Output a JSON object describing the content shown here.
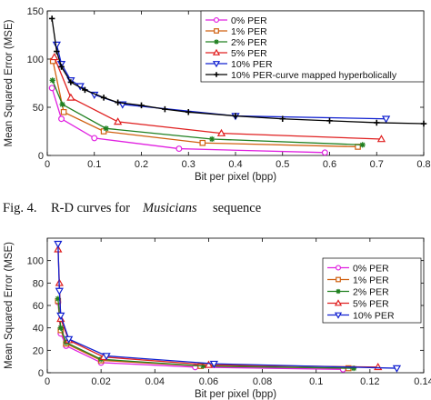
{
  "caption": {
    "prefix": "Fig. 4.",
    "text": "R-D curves for",
    "italic": "Musicians",
    "suffix": "sequence"
  },
  "chart_data": [
    {
      "type": "line",
      "xlabel": "Bit per pixel (bpp)",
      "ylabel": "Mean Squared Error (MSE)",
      "xlim": [
        0,
        0.8
      ],
      "ylim": [
        0,
        150
      ],
      "xticks": [
        "0",
        "0.1",
        "0.2",
        "0.3",
        "0.4",
        "0.5",
        "0.6",
        "0.7",
        "0.8"
      ],
      "yticks": [
        "0",
        "50",
        "100",
        "150"
      ],
      "grid": false,
      "legend_position": "top-right",
      "series": [
        {
          "name": "0% PER",
          "color": "#e020e0",
          "marker": "circle",
          "x": [
            0.01,
            0.03,
            0.1,
            0.28,
            0.59
          ],
          "y": [
            70,
            38,
            18,
            7,
            3
          ]
        },
        {
          "name": "1% PER",
          "color": "#d06010",
          "marker": "square",
          "x": [
            0.012,
            0.035,
            0.12,
            0.33,
            0.66
          ],
          "y": [
            98,
            45,
            25,
            13,
            9
          ]
        },
        {
          "name": "2% PER",
          "color": "#208020",
          "marker": "star",
          "x": [
            0.011,
            0.032,
            0.125,
            0.35,
            0.67
          ],
          "y": [
            78,
            53,
            28,
            17,
            11
          ]
        },
        {
          "name": "5% PER",
          "color": "#e02020",
          "marker": "triangle",
          "x": [
            0.015,
            0.05,
            0.15,
            0.37,
            0.71
          ],
          "y": [
            102,
            60,
            35,
            23,
            17
          ]
        },
        {
          "name": "10% PER",
          "color": "#1020d0",
          "marker": "triangle-down",
          "x": [
            0.02,
            0.03,
            0.05,
            0.07,
            0.1,
            0.16,
            0.4,
            0.72
          ],
          "y": [
            115,
            95,
            78,
            72,
            63,
            53,
            41,
            38
          ]
        },
        {
          "name": "10% PER-curve mapped hyperbolically",
          "color": "#000000",
          "marker": "plus",
          "line_style": "solid",
          "x": [
            0.01,
            0.02,
            0.03,
            0.05,
            0.08,
            0.12,
            0.15,
            0.2,
            0.25,
            0.3,
            0.4,
            0.5,
            0.6,
            0.7,
            0.8
          ],
          "y": [
            142,
            108,
            92,
            76,
            68,
            60,
            55,
            52,
            48,
            45,
            41,
            38,
            36,
            34,
            33
          ]
        }
      ]
    },
    {
      "type": "line",
      "xlabel": "Bit per pixel (bpp)",
      "ylabel": "Mean Squared Error (MSE)",
      "xlim": [
        0,
        0.14
      ],
      "ylim": [
        0,
        120
      ],
      "xticks": [
        "0",
        "0.02",
        "0.04",
        "0.06",
        "0.08",
        "0.1",
        "0.12",
        "0.14"
      ],
      "yticks": [
        "0",
        "20",
        "40",
        "60",
        "80",
        "100"
      ],
      "grid": false,
      "legend_position": "top-right",
      "series": [
        {
          "name": "0% PER",
          "color": "#e020e0",
          "marker": "circle",
          "x": [
            0.004,
            0.005,
            0.007,
            0.02,
            0.055,
            0.11
          ],
          "y": [
            63,
            35,
            24,
            9,
            5,
            3
          ]
        },
        {
          "name": "1% PER",
          "color": "#d06010",
          "marker": "square",
          "x": [
            0.004,
            0.005,
            0.007,
            0.02,
            0.057,
            0.112
          ],
          "y": [
            64,
            38,
            26,
            11,
            6,
            4
          ]
        },
        {
          "name": "2% PER",
          "color": "#208020",
          "marker": "star",
          "x": [
            0.004,
            0.005,
            0.007,
            0.02,
            0.058,
            0.114
          ],
          "y": [
            66,
            40,
            27,
            12,
            6,
            4
          ]
        },
        {
          "name": "5% PER",
          "color": "#e02020",
          "marker": "triangle",
          "x": [
            0.004,
            0.0045,
            0.005,
            0.008,
            0.021,
            0.06,
            0.123
          ],
          "y": [
            110,
            80,
            48,
            29,
            14,
            7,
            5
          ]
        },
        {
          "name": "10% PER",
          "color": "#1020d0",
          "marker": "triangle-down",
          "x": [
            0.004,
            0.0045,
            0.005,
            0.008,
            0.022,
            0.062,
            0.13
          ],
          "y": [
            115,
            73,
            51,
            30,
            15,
            8,
            4
          ]
        }
      ]
    }
  ]
}
